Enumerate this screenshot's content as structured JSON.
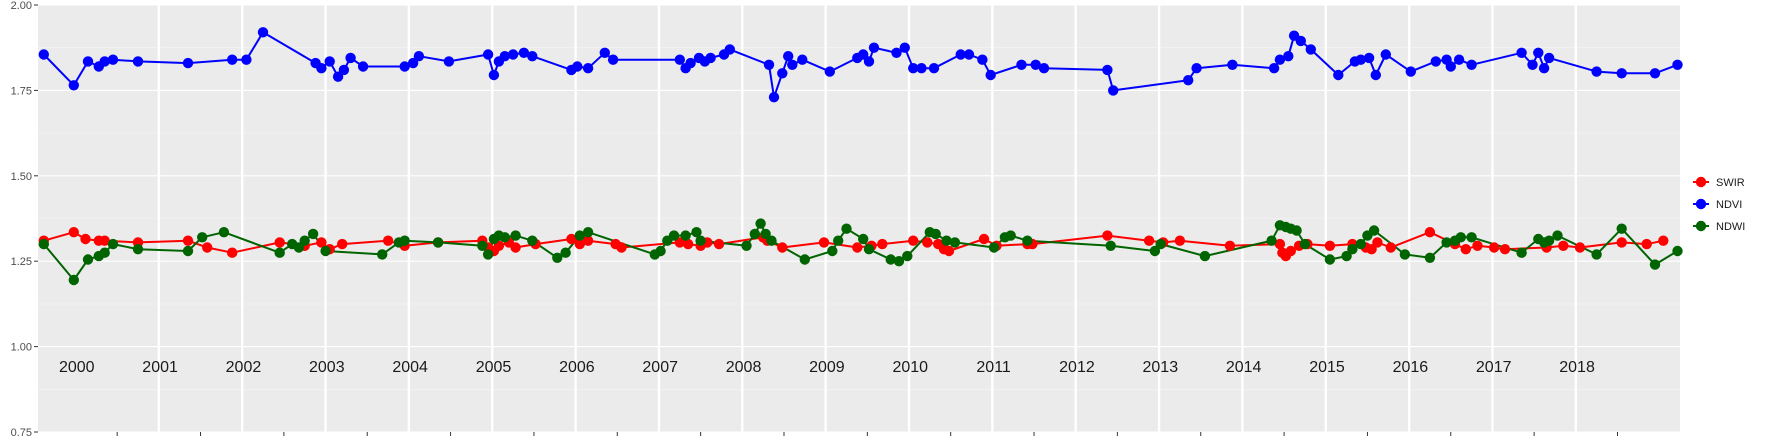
{
  "chart_data": {
    "type": "line",
    "title": "",
    "xlabel": "",
    "ylabel": "",
    "ylim": [
      0.75,
      2.0
    ],
    "xlim": [
      1999.55,
      2019.25
    ],
    "yticks": [
      {
        "value": 0.75,
        "label": "0.75"
      },
      {
        "value": 1.0,
        "label": "1.00"
      },
      {
        "value": 1.25,
        "label": "1.25"
      },
      {
        "value": 1.5,
        "label": "1.50"
      },
      {
        "value": 1.75,
        "label": "1.75"
      },
      {
        "value": 2.0,
        "label": "2.00"
      }
    ],
    "year_labels": [
      "2000",
      "2001",
      "2002",
      "2003",
      "2004",
      "2005",
      "2006",
      "2007",
      "2008",
      "2009",
      "2010",
      "2011",
      "2012",
      "2013",
      "2014",
      "2015",
      "2016",
      "2017",
      "2018"
    ],
    "grid": true,
    "legend_position": "right",
    "series": [
      {
        "name": "SWIR",
        "color": "#ff0000",
        "points": [
          [
            1999.62,
            1.31
          ],
          [
            1999.98,
            1.335
          ],
          [
            2000.12,
            1.315
          ],
          [
            2000.28,
            1.31
          ],
          [
            2000.35,
            1.31
          ],
          [
            2000.75,
            1.305
          ],
          [
            2001.35,
            1.31
          ],
          [
            2001.58,
            1.29
          ],
          [
            2001.88,
            1.275
          ],
          [
            2002.45,
            1.305
          ],
          [
            2002.75,
            1.295
          ],
          [
            2002.95,
            1.305
          ],
          [
            2003.05,
            1.285
          ],
          [
            2003.2,
            1.3
          ],
          [
            2003.75,
            1.31
          ],
          [
            2003.95,
            1.295
          ],
          [
            2004.35,
            1.305
          ],
          [
            2004.88,
            1.31
          ],
          [
            2004.95,
            1.29
          ],
          [
            2005.02,
            1.28
          ],
          [
            2005.08,
            1.295
          ],
          [
            2005.2,
            1.305
          ],
          [
            2005.28,
            1.29
          ],
          [
            2005.52,
            1.3
          ],
          [
            2005.95,
            1.315
          ],
          [
            2006.05,
            1.3
          ],
          [
            2006.15,
            1.31
          ],
          [
            2006.48,
            1.3
          ],
          [
            2006.55,
            1.29
          ],
          [
            2007.25,
            1.305
          ],
          [
            2007.35,
            1.3
          ],
          [
            2007.5,
            1.295
          ],
          [
            2007.58,
            1.305
          ],
          [
            2007.72,
            1.3
          ],
          [
            2008.25,
            1.32
          ],
          [
            2008.3,
            1.31
          ],
          [
            2008.48,
            1.29
          ],
          [
            2008.98,
            1.305
          ],
          [
            2009.38,
            1.29
          ],
          [
            2009.55,
            1.295
          ],
          [
            2009.68,
            1.3
          ],
          [
            2010.05,
            1.31
          ],
          [
            2010.22,
            1.305
          ],
          [
            2010.35,
            1.3
          ],
          [
            2010.42,
            1.285
          ],
          [
            2010.48,
            1.28
          ],
          [
            2010.9,
            1.315
          ],
          [
            2011.05,
            1.295
          ],
          [
            2011.42,
            1.3
          ],
          [
            2011.48,
            1.3
          ],
          [
            2012.38,
            1.325
          ],
          [
            2012.88,
            1.31
          ],
          [
            2013.05,
            1.305
          ],
          [
            2013.25,
            1.31
          ],
          [
            2013.85,
            1.295
          ],
          [
            2014.45,
            1.3
          ],
          [
            2014.48,
            1.275
          ],
          [
            2014.52,
            1.265
          ],
          [
            2014.58,
            1.28
          ],
          [
            2014.68,
            1.295
          ],
          [
            2014.78,
            1.3
          ],
          [
            2015.05,
            1.295
          ],
          [
            2015.32,
            1.3
          ],
          [
            2015.48,
            1.29
          ],
          [
            2015.55,
            1.285
          ],
          [
            2015.62,
            1.305
          ],
          [
            2015.78,
            1.29
          ],
          [
            2016.25,
            1.335
          ],
          [
            2016.55,
            1.3
          ],
          [
            2016.68,
            1.285
          ],
          [
            2016.82,
            1.295
          ],
          [
            2017.02,
            1.29
          ],
          [
            2017.15,
            1.285
          ],
          [
            2017.65,
            1.29
          ],
          [
            2017.85,
            1.295
          ],
          [
            2018.05,
            1.29
          ],
          [
            2018.55,
            1.305
          ],
          [
            2018.85,
            1.3
          ],
          [
            2019.05,
            1.31
          ]
        ]
      },
      {
        "name": "NDVI",
        "color": "#0000ff",
        "points": [
          [
            1999.62,
            1.855
          ],
          [
            1999.98,
            1.765
          ],
          [
            2000.15,
            1.835
          ],
          [
            2000.28,
            1.82
          ],
          [
            2000.35,
            1.835
          ],
          [
            2000.45,
            1.84
          ],
          [
            2000.75,
            1.835
          ],
          [
            2001.35,
            1.83
          ],
          [
            2001.88,
            1.84
          ],
          [
            2002.05,
            1.84
          ],
          [
            2002.25,
            1.92
          ],
          [
            2002.88,
            1.83
          ],
          [
            2002.95,
            1.815
          ],
          [
            2003.05,
            1.835
          ],
          [
            2003.15,
            1.79
          ],
          [
            2003.22,
            1.81
          ],
          [
            2003.3,
            1.845
          ],
          [
            2003.45,
            1.82
          ],
          [
            2003.95,
            1.82
          ],
          [
            2004.05,
            1.83
          ],
          [
            2004.12,
            1.85
          ],
          [
            2004.48,
            1.835
          ],
          [
            2004.95,
            1.855
          ],
          [
            2005.02,
            1.795
          ],
          [
            2005.08,
            1.835
          ],
          [
            2005.15,
            1.85
          ],
          [
            2005.25,
            1.855
          ],
          [
            2005.38,
            1.86
          ],
          [
            2005.48,
            1.85
          ],
          [
            2005.95,
            1.81
          ],
          [
            2006.02,
            1.82
          ],
          [
            2006.15,
            1.815
          ],
          [
            2006.35,
            1.86
          ],
          [
            2006.45,
            1.84
          ],
          [
            2007.25,
            1.84
          ],
          [
            2007.32,
            1.815
          ],
          [
            2007.38,
            1.83
          ],
          [
            2007.48,
            1.845
          ],
          [
            2007.55,
            1.835
          ],
          [
            2007.62,
            1.845
          ],
          [
            2007.78,
            1.855
          ],
          [
            2007.85,
            1.87
          ],
          [
            2008.32,
            1.825
          ],
          [
            2008.38,
            1.73
          ],
          [
            2008.48,
            1.8
          ],
          [
            2008.55,
            1.85
          ],
          [
            2008.6,
            1.825
          ],
          [
            2008.72,
            1.84
          ],
          [
            2009.05,
            1.805
          ],
          [
            2009.38,
            1.845
          ],
          [
            2009.45,
            1.855
          ],
          [
            2009.52,
            1.835
          ],
          [
            2009.58,
            1.875
          ],
          [
            2009.85,
            1.86
          ],
          [
            2009.95,
            1.875
          ],
          [
            2010.05,
            1.815
          ],
          [
            2010.15,
            1.815
          ],
          [
            2010.3,
            1.815
          ],
          [
            2010.62,
            1.855
          ],
          [
            2010.72,
            1.855
          ],
          [
            2010.88,
            1.84
          ],
          [
            2010.98,
            1.795
          ],
          [
            2011.35,
            1.825
          ],
          [
            2011.52,
            1.825
          ],
          [
            2011.62,
            1.815
          ],
          [
            2012.38,
            1.81
          ],
          [
            2012.45,
            1.75
          ],
          [
            2013.35,
            1.78
          ],
          [
            2013.45,
            1.815
          ],
          [
            2013.88,
            1.825
          ],
          [
            2014.38,
            1.815
          ],
          [
            2014.45,
            1.84
          ],
          [
            2014.55,
            1.85
          ],
          [
            2014.62,
            1.91
          ],
          [
            2014.7,
            1.895
          ],
          [
            2014.82,
            1.87
          ],
          [
            2015.15,
            1.795
          ],
          [
            2015.35,
            1.835
          ],
          [
            2015.42,
            1.84
          ],
          [
            2015.52,
            1.845
          ],
          [
            2015.6,
            1.795
          ],
          [
            2015.72,
            1.855
          ],
          [
            2016.02,
            1.805
          ],
          [
            2016.32,
            1.835
          ],
          [
            2016.45,
            1.84
          ],
          [
            2016.5,
            1.82
          ],
          [
            2016.6,
            1.84
          ],
          [
            2016.75,
            1.825
          ],
          [
            2017.35,
            1.86
          ],
          [
            2017.48,
            1.825
          ],
          [
            2017.55,
            1.86
          ],
          [
            2017.62,
            1.815
          ],
          [
            2017.68,
            1.845
          ],
          [
            2018.25,
            1.805
          ],
          [
            2018.55,
            1.8
          ],
          [
            2018.95,
            1.8
          ],
          [
            2019.22,
            1.825
          ]
        ]
      },
      {
        "name": "NDWI",
        "color": "#006400",
        "points": [
          [
            1999.62,
            1.3
          ],
          [
            1999.98,
            1.195
          ],
          [
            2000.15,
            1.255
          ],
          [
            2000.28,
            1.265
          ],
          [
            2000.35,
            1.275
          ],
          [
            2000.45,
            1.3
          ],
          [
            2000.75,
            1.285
          ],
          [
            2001.35,
            1.28
          ],
          [
            2001.52,
            1.32
          ],
          [
            2001.78,
            1.335
          ],
          [
            2002.45,
            1.275
          ],
          [
            2002.6,
            1.3
          ],
          [
            2002.68,
            1.29
          ],
          [
            2002.75,
            1.31
          ],
          [
            2002.85,
            1.33
          ],
          [
            2003.0,
            1.28
          ],
          [
            2003.68,
            1.27
          ],
          [
            2003.88,
            1.305
          ],
          [
            2003.95,
            1.31
          ],
          [
            2004.35,
            1.305
          ],
          [
            2004.88,
            1.295
          ],
          [
            2004.95,
            1.27
          ],
          [
            2005.02,
            1.315
          ],
          [
            2005.08,
            1.325
          ],
          [
            2005.15,
            1.32
          ],
          [
            2005.28,
            1.325
          ],
          [
            2005.48,
            1.31
          ],
          [
            2005.78,
            1.26
          ],
          [
            2005.88,
            1.275
          ],
          [
            2006.05,
            1.325
          ],
          [
            2006.15,
            1.335
          ],
          [
            2006.95,
            1.27
          ],
          [
            2007.02,
            1.28
          ],
          [
            2007.1,
            1.31
          ],
          [
            2007.18,
            1.325
          ],
          [
            2007.32,
            1.325
          ],
          [
            2007.45,
            1.335
          ],
          [
            2007.5,
            1.31
          ],
          [
            2008.05,
            1.295
          ],
          [
            2008.15,
            1.33
          ],
          [
            2008.22,
            1.36
          ],
          [
            2008.28,
            1.33
          ],
          [
            2008.35,
            1.31
          ],
          [
            2008.75,
            1.255
          ],
          [
            2009.08,
            1.28
          ],
          [
            2009.15,
            1.31
          ],
          [
            2009.25,
            1.345
          ],
          [
            2009.45,
            1.315
          ],
          [
            2009.52,
            1.285
          ],
          [
            2009.78,
            1.255
          ],
          [
            2009.88,
            1.25
          ],
          [
            2009.98,
            1.265
          ],
          [
            2010.25,
            1.335
          ],
          [
            2010.32,
            1.33
          ],
          [
            2010.45,
            1.31
          ],
          [
            2010.55,
            1.305
          ],
          [
            2011.02,
            1.29
          ],
          [
            2011.15,
            1.32
          ],
          [
            2011.22,
            1.325
          ],
          [
            2011.42,
            1.31
          ],
          [
            2012.42,
            1.295
          ],
          [
            2012.95,
            1.28
          ],
          [
            2013.02,
            1.3
          ],
          [
            2013.55,
            1.265
          ],
          [
            2014.35,
            1.31
          ],
          [
            2014.45,
            1.355
          ],
          [
            2014.52,
            1.35
          ],
          [
            2014.58,
            1.345
          ],
          [
            2014.65,
            1.34
          ],
          [
            2014.75,
            1.3
          ],
          [
            2015.05,
            1.255
          ],
          [
            2015.25,
            1.265
          ],
          [
            2015.32,
            1.285
          ],
          [
            2015.42,
            1.3
          ],
          [
            2015.5,
            1.325
          ],
          [
            2015.58,
            1.34
          ],
          [
            2015.95,
            1.27
          ],
          [
            2016.25,
            1.26
          ],
          [
            2016.45,
            1.305
          ],
          [
            2016.55,
            1.31
          ],
          [
            2016.62,
            1.32
          ],
          [
            2016.75,
            1.32
          ],
          [
            2017.35,
            1.275
          ],
          [
            2017.55,
            1.315
          ],
          [
            2017.62,
            1.305
          ],
          [
            2017.68,
            1.31
          ],
          [
            2017.78,
            1.325
          ],
          [
            2018.25,
            1.27
          ],
          [
            2018.55,
            1.345
          ],
          [
            2018.95,
            1.24
          ],
          [
            2019.22,
            1.28
          ]
        ]
      }
    ]
  }
}
